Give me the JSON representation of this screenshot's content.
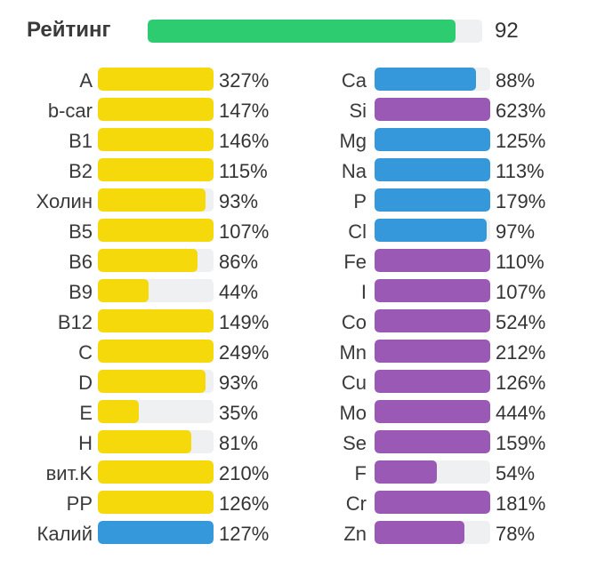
{
  "rating": {
    "label": "Рейтинг",
    "value": "92",
    "fraction": 0.92,
    "color": "#2ecc71"
  },
  "colors": {
    "vitamin": "#f5d90a",
    "macro": "#3498db",
    "micro": "#9b59b6",
    "track": "#eef0f2"
  },
  "chart_data": {
    "type": "bar",
    "orientation": "horizontal",
    "unit": "%",
    "left_column": [
      {
        "name": "A",
        "value": 327,
        "label": "327%",
        "group": "vitamin"
      },
      {
        "name": "b-car",
        "value": 147,
        "label": "147%",
        "group": "vitamin"
      },
      {
        "name": "B1",
        "value": 146,
        "label": "146%",
        "group": "vitamin"
      },
      {
        "name": "B2",
        "value": 115,
        "label": "115%",
        "group": "vitamin"
      },
      {
        "name": "Холин",
        "value": 93,
        "label": "93%",
        "group": "vitamin"
      },
      {
        "name": "B5",
        "value": 107,
        "label": "107%",
        "group": "vitamin"
      },
      {
        "name": "B6",
        "value": 86,
        "label": "86%",
        "group": "vitamin"
      },
      {
        "name": "B9",
        "value": 44,
        "label": "44%",
        "group": "vitamin"
      },
      {
        "name": "B12",
        "value": 149,
        "label": "149%",
        "group": "vitamin"
      },
      {
        "name": "C",
        "value": 249,
        "label": "249%",
        "group": "vitamin"
      },
      {
        "name": "D",
        "value": 93,
        "label": "93%",
        "group": "vitamin"
      },
      {
        "name": "E",
        "value": 35,
        "label": "35%",
        "group": "vitamin"
      },
      {
        "name": "H",
        "value": 81,
        "label": "81%",
        "group": "vitamin"
      },
      {
        "name": "вит.K",
        "value": 210,
        "label": "210%",
        "group": "vitamin"
      },
      {
        "name": "PP",
        "value": 126,
        "label": "126%",
        "group": "vitamin"
      },
      {
        "name": "Калий",
        "value": 127,
        "label": "127%",
        "group": "macro"
      }
    ],
    "right_column": [
      {
        "name": "Ca",
        "value": 88,
        "label": "88%",
        "group": "macro"
      },
      {
        "name": "Si",
        "value": 623,
        "label": "623%",
        "group": "micro"
      },
      {
        "name": "Mg",
        "value": 125,
        "label": "125%",
        "group": "macro"
      },
      {
        "name": "Na",
        "value": 113,
        "label": "113%",
        "group": "macro"
      },
      {
        "name": "P",
        "value": 179,
        "label": "179%",
        "group": "macro"
      },
      {
        "name": "Cl",
        "value": 97,
        "label": "97%",
        "group": "macro"
      },
      {
        "name": "Fe",
        "value": 110,
        "label": "110%",
        "group": "micro"
      },
      {
        "name": "I",
        "value": 107,
        "label": "107%",
        "group": "micro"
      },
      {
        "name": "Co",
        "value": 524,
        "label": "524%",
        "group": "micro"
      },
      {
        "name": "Mn",
        "value": 212,
        "label": "212%",
        "group": "micro"
      },
      {
        "name": "Cu",
        "value": 126,
        "label": "126%",
        "group": "micro"
      },
      {
        "name": "Mo",
        "value": 444,
        "label": "444%",
        "group": "micro"
      },
      {
        "name": "Se",
        "value": 159,
        "label": "159%",
        "group": "micro"
      },
      {
        "name": "F",
        "value": 54,
        "label": "54%",
        "group": "micro"
      },
      {
        "name": "Cr",
        "value": 181,
        "label": "181%",
        "group": "micro"
      },
      {
        "name": "Zn",
        "value": 78,
        "label": "78%",
        "group": "micro"
      }
    ],
    "max_fill": 100
  }
}
